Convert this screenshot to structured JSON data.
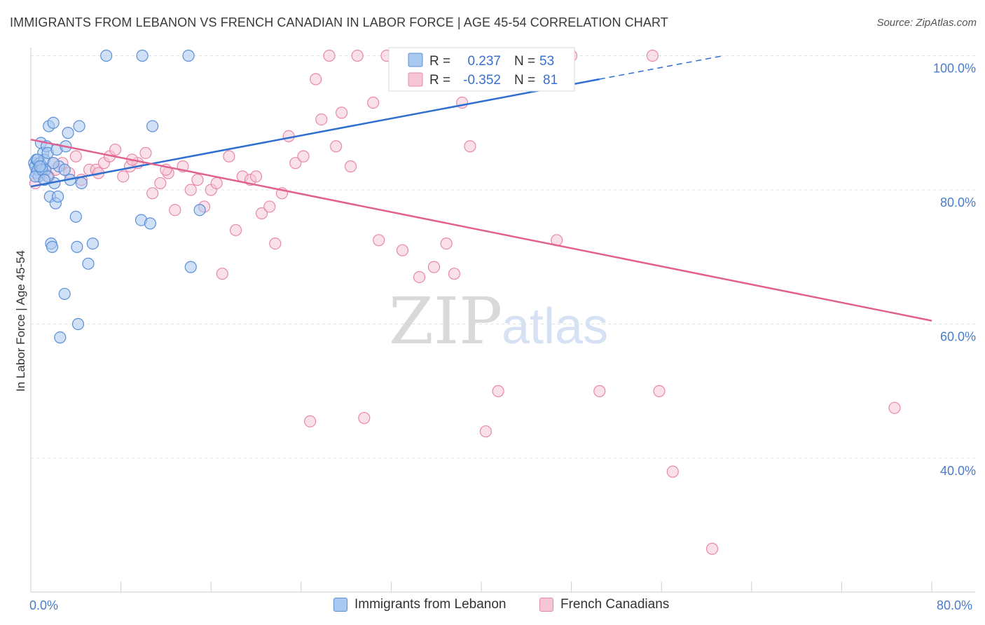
{
  "title": "IMMIGRANTS FROM LEBANON VS FRENCH CANADIAN IN LABOR FORCE | AGE 45-54 CORRELATION CHART",
  "source": "Source: ZipAtlas.com",
  "watermark": {
    "zip": "ZIP",
    "atlas": "atlas"
  },
  "colors": {
    "blue_fill": "#a9c8f0",
    "blue_stroke": "#5b8fd6",
    "blue_line": "#2e6fd0",
    "pink_fill": "#f6c6d6",
    "pink_stroke": "#e889a8",
    "pink_line": "#e0608e",
    "grid": "#dde1e8",
    "tick_text": "#4a7cc9"
  },
  "legend": {
    "rows": [
      {
        "r_label": "R =",
        "r_value": "0.237",
        "n_label": "N =",
        "n_value": "53"
      },
      {
        "r_label": "R =",
        "r_value": "-0.352",
        "n_label": "N =",
        "n_value": "81"
      }
    ]
  },
  "bottom_legend": [
    "Immigrants from Lebanon",
    "French Canadians"
  ],
  "chart_data": {
    "type": "scatter",
    "title": "IMMIGRANTS FROM LEBANON VS FRENCH CANADIAN IN LABOR FORCE | AGE 45-54 CORRELATION CHART",
    "xlabel": "",
    "ylabel": "In Labor Force | Age 45-54",
    "xlim": [
      0,
      80
    ],
    "ylim": [
      18,
      103
    ],
    "x_tick_labels": [
      "0.0%",
      "80.0%"
    ],
    "y_ticks": [
      40,
      60,
      80,
      100
    ],
    "y_tick_labels": [
      "40.0%",
      "60.0%",
      "80.0%",
      "100.0%"
    ],
    "grid": true,
    "legend_position": "top-center",
    "series": [
      {
        "name": "Immigrants from Lebanon",
        "trend": {
          "x0": 0.0,
          "y0": 80.5,
          "x1": 50.5,
          "y1": 96.5,
          "dash_to_x": 61.5,
          "dash_to_y": 100.0
        },
        "points": [
          [
            0.3,
            84.0
          ],
          [
            0.4,
            83.5
          ],
          [
            0.5,
            82.5
          ],
          [
            0.5,
            84.5
          ],
          [
            0.6,
            83.0
          ],
          [
            0.7,
            82.0
          ],
          [
            0.8,
            84.0
          ],
          [
            0.9,
            87.0
          ],
          [
            1.0,
            83.5
          ],
          [
            1.1,
            85.5
          ],
          [
            1.2,
            84.5
          ],
          [
            1.3,
            83.0
          ],
          [
            1.4,
            86.5
          ],
          [
            1.5,
            85.5
          ],
          [
            1.6,
            89.5
          ],
          [
            1.7,
            79.0
          ],
          [
            1.8,
            72.0
          ],
          [
            1.9,
            71.5
          ],
          [
            2.0,
            90.0
          ],
          [
            2.1,
            81.0
          ],
          [
            2.2,
            78.0
          ],
          [
            2.3,
            86.0
          ],
          [
            2.4,
            79.0
          ],
          [
            2.5,
            83.5
          ],
          [
            2.6,
            58.0
          ],
          [
            3.0,
            64.5
          ],
          [
            3.1,
            86.5
          ],
          [
            3.3,
            88.5
          ],
          [
            3.5,
            81.5
          ],
          [
            4.0,
            76.0
          ],
          [
            4.1,
            71.5
          ],
          [
            4.2,
            60.0
          ],
          [
            4.3,
            89.5
          ],
          [
            4.5,
            81.0
          ],
          [
            5.1,
            69.0
          ],
          [
            5.5,
            72.0
          ],
          [
            6.7,
            100.0
          ],
          [
            9.8,
            75.5
          ],
          [
            9.9,
            100.0
          ],
          [
            10.6,
            75.0
          ],
          [
            10.8,
            89.5
          ],
          [
            14.0,
            100.0
          ],
          [
            14.2,
            68.5
          ],
          [
            15.0,
            77.0
          ],
          [
            0.4,
            82.0
          ],
          [
            0.6,
            84.5
          ],
          [
            1.0,
            83.0
          ],
          [
            1.5,
            82.0
          ],
          [
            0.8,
            83.5
          ],
          [
            44.0,
            100.0
          ],
          [
            2.0,
            84.0
          ],
          [
            3.0,
            83.0
          ],
          [
            1.2,
            81.5
          ]
        ]
      },
      {
        "name": "French Canadians",
        "trend": {
          "x0": 0.0,
          "y0": 87.5,
          "x1": 80.0,
          "y1": 60.5
        },
        "points": [
          [
            0.4,
            81.0
          ],
          [
            0.8,
            83.0
          ],
          [
            1.2,
            82.5
          ],
          [
            1.6,
            82.0
          ],
          [
            2.2,
            83.0
          ],
          [
            2.8,
            84.0
          ],
          [
            3.4,
            82.5
          ],
          [
            4.0,
            85.0
          ],
          [
            4.5,
            81.5
          ],
          [
            5.2,
            83.0
          ],
          [
            5.8,
            83.0
          ],
          [
            6.5,
            84.0
          ],
          [
            7.0,
            85.0
          ],
          [
            7.5,
            86.0
          ],
          [
            8.2,
            82.0
          ],
          [
            8.8,
            83.5
          ],
          [
            9.5,
            84.0
          ],
          [
            10.2,
            85.5
          ],
          [
            10.8,
            79.5
          ],
          [
            11.5,
            81.0
          ],
          [
            12.2,
            82.5
          ],
          [
            12.8,
            77.0
          ],
          [
            13.5,
            83.5
          ],
          [
            14.2,
            80.0
          ],
          [
            14.8,
            81.5
          ],
          [
            15.4,
            77.5
          ],
          [
            16.0,
            80.0
          ],
          [
            16.5,
            81.0
          ],
          [
            17.0,
            67.5
          ],
          [
            17.6,
            85.0
          ],
          [
            18.2,
            74.0
          ],
          [
            18.8,
            82.0
          ],
          [
            19.5,
            81.5
          ],
          [
            20.0,
            82.0
          ],
          [
            20.5,
            76.5
          ],
          [
            21.2,
            77.5
          ],
          [
            21.7,
            72.0
          ],
          [
            22.3,
            79.5
          ],
          [
            22.9,
            88.0
          ],
          [
            23.5,
            84.0
          ],
          [
            24.2,
            85.0
          ],
          [
            24.8,
            45.5
          ],
          [
            25.3,
            96.5
          ],
          [
            25.8,
            90.5
          ],
          [
            26.5,
            100.0
          ],
          [
            27.1,
            86.5
          ],
          [
            27.6,
            91.5
          ],
          [
            28.4,
            83.5
          ],
          [
            29.0,
            100.0
          ],
          [
            29.6,
            46.0
          ],
          [
            30.4,
            93.0
          ],
          [
            30.9,
            72.5
          ],
          [
            31.6,
            100.0
          ],
          [
            32.4,
            100.0
          ],
          [
            33.0,
            71.0
          ],
          [
            33.8,
            100.0
          ],
          [
            34.5,
            67.0
          ],
          [
            35.2,
            100.0
          ],
          [
            35.8,
            68.5
          ],
          [
            36.4,
            100.0
          ],
          [
            36.9,
            72.0
          ],
          [
            37.6,
            67.5
          ],
          [
            38.3,
            93.0
          ],
          [
            39.0,
            86.5
          ],
          [
            39.8,
            100.0
          ],
          [
            40.4,
            44.0
          ],
          [
            41.5,
            50.0
          ],
          [
            43.5,
            100.0
          ],
          [
            45.3,
            100.0
          ],
          [
            46.7,
            72.5
          ],
          [
            48.0,
            100.0
          ],
          [
            50.5,
            50.0
          ],
          [
            55.2,
            100.0
          ],
          [
            55.8,
            50.0
          ],
          [
            57.0,
            38.0
          ],
          [
            60.5,
            26.5
          ],
          [
            76.7,
            47.5
          ],
          [
            2.0,
            84.0
          ],
          [
            6.0,
            82.5
          ],
          [
            9.0,
            84.5
          ],
          [
            12.0,
            83.0
          ]
        ]
      }
    ]
  }
}
